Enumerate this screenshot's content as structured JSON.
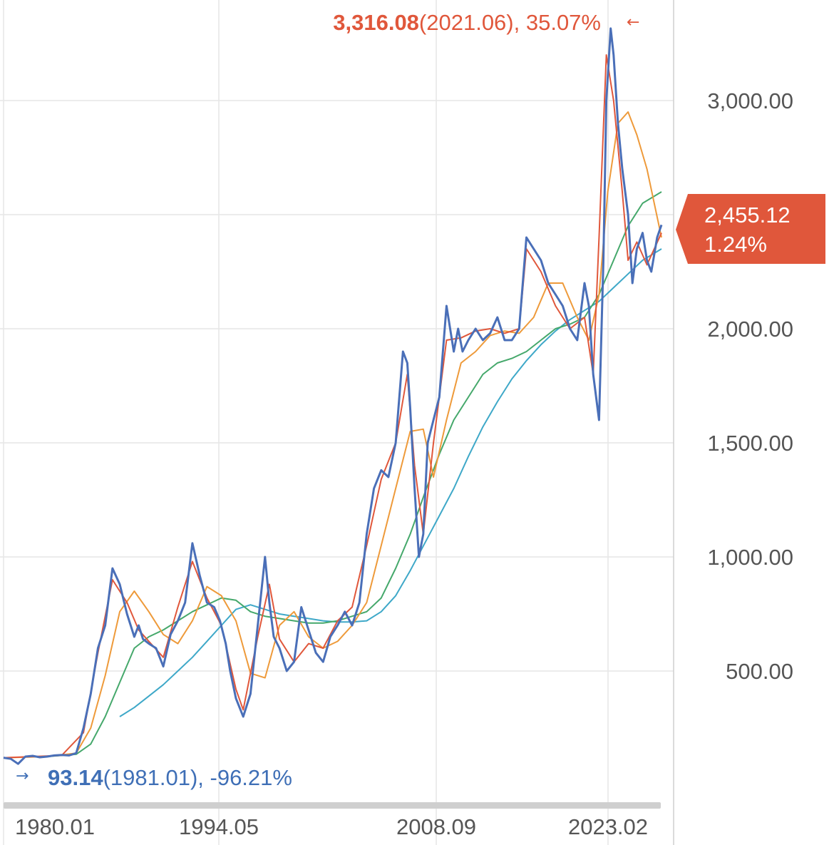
{
  "chart_data": {
    "type": "line",
    "title": "",
    "xlabel": "",
    "ylabel": "",
    "x_ticks": [
      "1980.01",
      "1994.05",
      "2008.09",
      "2023.02"
    ],
    "y_ticks": [
      "500.00",
      "1,000.00",
      "1,500.00",
      "2,000.00",
      "3,000.00"
    ],
    "ylim": [
      0,
      3400
    ],
    "xlim": [
      1980.0,
      2025.3
    ],
    "grid": true,
    "last": {
      "value": "2,455.12",
      "change": "1.24%",
      "color": "#e0573b"
    },
    "max": {
      "value": "3,316.08",
      "date": "(2021.06), 35.07%",
      "arrow": "←",
      "color": "#e0573b"
    },
    "min": {
      "value": "93.14",
      "date": "(1981.01), -96.21%",
      "arrow": "→",
      "color": "#3f6fb6"
    },
    "series": [
      {
        "color": "#4a6fb8",
        "x": [
          1980.0,
          1980.5,
          1981.0,
          1981.5,
          1982.0,
          1982.5,
          1983.0,
          1983.5,
          1984.0,
          1984.5,
          1985.0,
          1985.5,
          1986.0,
          1986.5,
          1987.0,
          1987.5,
          1988.0,
          1988.5,
          1989.0,
          1989.3,
          1989.6,
          1990.0,
          1990.5,
          1991.0,
          1991.5,
          1992.0,
          1992.5,
          1993.0,
          1993.5,
          1994.0,
          1994.5,
          1994.9,
          1995.3,
          1995.6,
          1996.0,
          1996.5,
          1997.0,
          1997.5,
          1998.0,
          1998.3,
          1998.6,
          1999.0,
          1999.5,
          2000.0,
          2000.5,
          2001.0,
          2001.5,
          2002.0,
          2002.5,
          2003.0,
          2003.5,
          2004.0,
          2004.5,
          2005.0,
          2005.5,
          2006.0,
          2006.5,
          2007.0,
          2007.5,
          2007.8,
          2008.0,
          2008.3,
          2008.6,
          2008.9,
          2009.2,
          2009.6,
          2010.0,
          2010.5,
          2011.0,
          2011.3,
          2011.6,
          2012.0,
          2012.5,
          2013.0,
          2013.5,
          2014.0,
          2014.5,
          2015.0,
          2015.5,
          2016.0,
          2016.5,
          2017.0,
          2017.5,
          2018.0,
          2018.5,
          2019.0,
          2019.5,
          2020.0,
          2020.3,
          2020.6,
          2021.0,
          2021.3,
          2021.5,
          2021.8,
          2022.0,
          2022.3,
          2022.6,
          2023.0,
          2023.3,
          2023.6,
          2024.0,
          2024.3,
          2024.6,
          2025.0,
          2025.3
        ],
        "y": [
          120,
          115,
          93.14,
          125,
          128,
          122,
          125,
          130,
          132,
          130,
          140,
          250,
          400,
          600,
          700,
          950,
          880,
          750,
          650,
          700,
          640,
          620,
          600,
          520,
          660,
          720,
          800,
          1060,
          920,
          800,
          780,
          720,
          620,
          500,
          380,
          300,
          400,
          700,
          1000,
          800,
          650,
          600,
          500,
          540,
          780,
          680,
          580,
          540,
          650,
          700,
          760,
          700,
          800,
          1100,
          1300,
          1380,
          1350,
          1500,
          1900,
          1850,
          1650,
          1300,
          1000,
          1100,
          1500,
          1600,
          1700,
          2100,
          1900,
          2000,
          1900,
          1950,
          2000,
          1950,
          1980,
          2050,
          1950,
          1950,
          2000,
          2400,
          2350,
          2300,
          2200,
          2150,
          2100,
          2000,
          1950,
          2200,
          2100,
          1800,
          1600,
          2300,
          3000,
          3316.08,
          3200,
          2900,
          2700,
          2500,
          2200,
          2350,
          2420,
          2300,
          2250,
          2400,
          2455.12
        ]
      },
      {
        "color": "#e0573b",
        "x": [
          1980.0,
          1982.0,
          1984.0,
          1985.5,
          1986.5,
          1987.5,
          1988.5,
          1989.3,
          1990.0,
          1991.0,
          1992.0,
          1993.0,
          1994.0,
          1995.0,
          1996.0,
          1996.5,
          1997.5,
          1998.3,
          1999.0,
          2000.0,
          2001.0,
          2002.0,
          2003.0,
          2004.0,
          2005.0,
          2006.0,
          2007.0,
          2007.8,
          2008.3,
          2008.9,
          2009.6,
          2010.5,
          2011.5,
          2012.5,
          2013.5,
          2014.5,
          2015.5,
          2016.0,
          2017.0,
          2018.0,
          2019.0,
          2020.0,
          2020.6,
          2021.0,
          2021.5,
          2022.0,
          2022.6,
          2023.0,
          2023.6,
          2024.3,
          2025.3
        ],
        "y": [
          120,
          125,
          130,
          230,
          580,
          900,
          800,
          680,
          630,
          560,
          780,
          980,
          820,
          700,
          420,
          330,
          650,
          880,
          640,
          540,
          620,
          600,
          720,
          780,
          1050,
          1340,
          1500,
          1800,
          1400,
          1100,
          1500,
          1950,
          1960,
          1990,
          2000,
          1980,
          2000,
          2350,
          2250,
          2100,
          2000,
          2050,
          1800,
          2400,
          3200,
          3000,
          2600,
          2300,
          2380,
          2280,
          2420
        ]
      },
      {
        "color": "#ee9a3a",
        "x": [
          1980.0,
          1983.0,
          1985.0,
          1986.0,
          1987.0,
          1988.0,
          1989.0,
          1990.0,
          1991.0,
          1992.0,
          1993.0,
          1994.0,
          1995.0,
          1996.0,
          1997.0,
          1998.0,
          1999.0,
          2000.0,
          2001.0,
          2002.0,
          2003.0,
          2004.0,
          2005.0,
          2006.0,
          2007.0,
          2008.0,
          2008.9,
          2009.6,
          2010.5,
          2011.5,
          2012.5,
          2013.5,
          2014.5,
          2015.5,
          2016.5,
          2017.5,
          2018.5,
          2019.5,
          2020.3,
          2021.0,
          2021.6,
          2022.3,
          2023.0,
          2023.6,
          2024.3,
          2025.3
        ],
        "y": [
          120,
          125,
          140,
          250,
          480,
          760,
          850,
          760,
          660,
          620,
          720,
          870,
          830,
          720,
          490,
          470,
          700,
          760,
          650,
          600,
          630,
          700,
          800,
          1050,
          1300,
          1550,
          1560,
          1350,
          1600,
          1850,
          1900,
          1970,
          1990,
          1980,
          2050,
          2200,
          2200,
          2050,
          1950,
          2150,
          2600,
          2900,
          2950,
          2850,
          2700,
          2400
        ]
      },
      {
        "color": "#45a86b",
        "x": [
          1983.0,
          1985.0,
          1986.0,
          1987.0,
          1988.0,
          1989.0,
          1990.0,
          1991.0,
          1992.0,
          1993.0,
          1994.0,
          1995.0,
          1996.0,
          1997.0,
          1998.0,
          1999.0,
          2000.0,
          2001.0,
          2002.0,
          2003.0,
          2004.0,
          2005.0,
          2006.0,
          2007.0,
          2008.0,
          2009.0,
          2010.0,
          2011.0,
          2012.0,
          2013.0,
          2014.0,
          2015.0,
          2016.0,
          2017.0,
          2018.0,
          2019.0,
          2020.0,
          2021.0,
          2022.0,
          2023.0,
          2024.0,
          2025.3
        ],
        "y": [
          125,
          135,
          180,
          300,
          450,
          600,
          650,
          680,
          720,
          760,
          790,
          820,
          810,
          760,
          740,
          730,
          720,
          710,
          710,
          720,
          740,
          760,
          820,
          950,
          1100,
          1280,
          1450,
          1600,
          1700,
          1800,
          1850,
          1870,
          1900,
          1950,
          2000,
          2020,
          2050,
          2150,
          2300,
          2450,
          2550,
          2600
        ]
      },
      {
        "color": "#3ea8c8",
        "x": [
          1988.0,
          1989.0,
          1990.0,
          1991.0,
          1992.0,
          1993.0,
          1994.0,
          1995.0,
          1996.0,
          1997.0,
          1998.0,
          1999.0,
          2000.0,
          2001.0,
          2002.0,
          2003.0,
          2004.0,
          2005.0,
          2006.0,
          2007.0,
          2008.0,
          2009.0,
          2010.0,
          2011.0,
          2012.0,
          2013.0,
          2014.0,
          2015.0,
          2016.0,
          2017.0,
          2018.0,
          2019.0,
          2020.0,
          2021.0,
          2022.0,
          2023.0,
          2024.0,
          2025.3
        ],
        "y": [
          300,
          340,
          390,
          440,
          500,
          560,
          630,
          700,
          770,
          790,
          770,
          750,
          740,
          730,
          720,
          715,
          715,
          720,
          760,
          830,
          940,
          1060,
          1180,
          1300,
          1440,
          1570,
          1680,
          1780,
          1860,
          1930,
          1990,
          2040,
          2080,
          2120,
          2180,
          2240,
          2300,
          2350
        ]
      }
    ]
  }
}
